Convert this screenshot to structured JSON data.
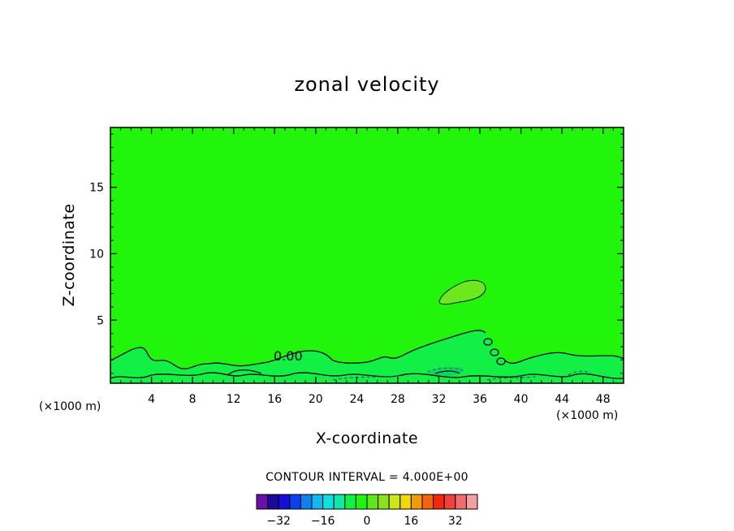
{
  "chart_data": {
    "type": "heatmap",
    "title": "zonal velocity",
    "xlabel": "X-coordinate",
    "ylabel": "Z-coordinate",
    "x_unit_left": "(×1000 m)",
    "x_unit_right": "(×1000 m)",
    "xlim": [
      0,
      50
    ],
    "ylim": [
      0.25,
      19.5
    ],
    "x_ticks": [
      4,
      8,
      12,
      16,
      20,
      24,
      28,
      32,
      36,
      40,
      44,
      48
    ],
    "y_ticks": [
      5,
      10,
      15
    ],
    "contour_interval_text": "CONTOUR INTERVAL = 4.000E+00",
    "contour_label": "0.00",
    "background_level_color": "#22f50c",
    "features": [
      {
        "name": "lower-layer",
        "color": "#12f046"
      },
      {
        "name": "upper-anomaly",
        "color": "#6ee81e"
      },
      {
        "name": "core-pocket",
        "color": "#0cd860"
      }
    ],
    "colorbar": {
      "colors": [
        "#6a0fa8",
        "#1c0aa0",
        "#1410d8",
        "#0a40f0",
        "#0e80f0",
        "#12b8f0",
        "#10e0e0",
        "#10e8a8",
        "#12f046",
        "#22f50c",
        "#5ee81a",
        "#8ee01a",
        "#c8e81a",
        "#f0d80a",
        "#f09c0a",
        "#f5640a",
        "#f5280a",
        "#f04040",
        "#f06e6e",
        "#f4a0a0"
      ],
      "tick_labels": [
        "-32",
        "-16",
        "0",
        "16",
        "32"
      ],
      "tick_values": [
        -32,
        -16,
        0,
        16,
        32
      ],
      "range": [
        -40,
        40
      ]
    }
  }
}
